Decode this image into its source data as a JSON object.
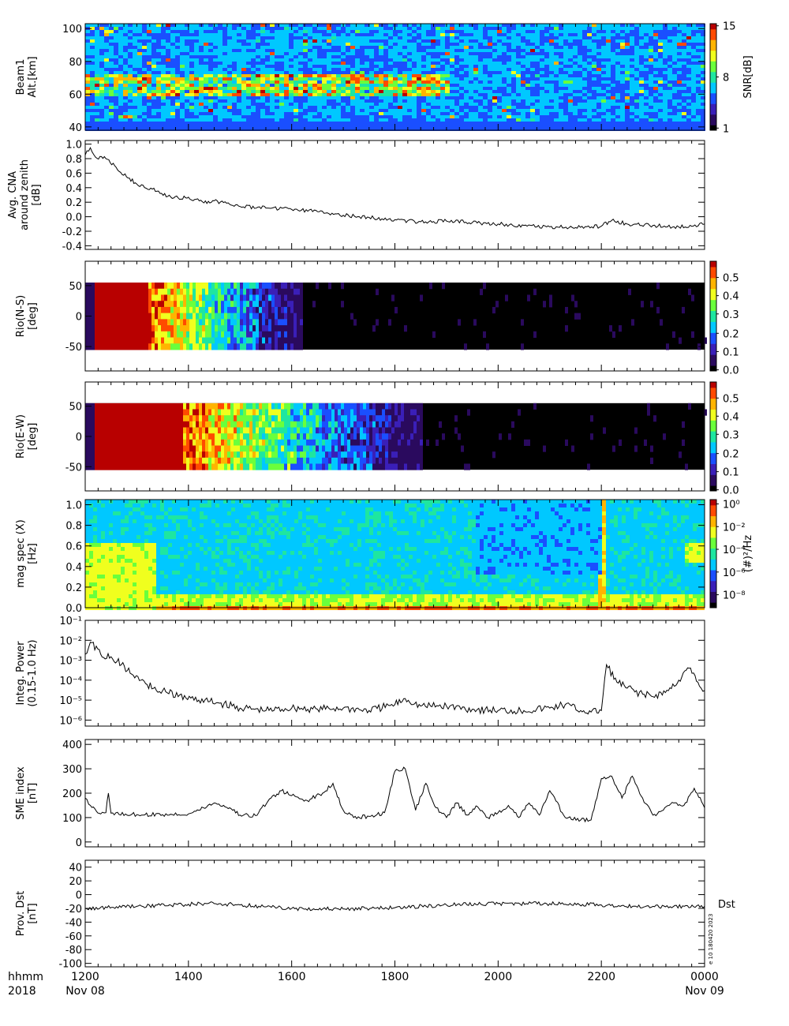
{
  "time_axis": {
    "tick_labels": [
      "1200",
      "1400",
      "1600",
      "1800",
      "2000",
      "2200",
      "0000"
    ],
    "row1_left": "hhmm",
    "row2_left": "2018",
    "date_start": "Nov 08",
    "date_end": "Nov 09"
  },
  "panels": {
    "beam": {
      "ylabel_lines": [
        "Beam1",
        "Alt.[km]"
      ],
      "yticks": [
        "40",
        "60",
        "80",
        "100"
      ],
      "colorbar_label": "SNR[dB]",
      "colorbar_ticks": [
        "1",
        "8",
        "15"
      ]
    },
    "cna": {
      "ylabel_lines": [
        "Avg. CNA",
        "around zenith",
        "[dB]"
      ],
      "yticks": [
        "-0.4",
        "-0.2",
        "0.0",
        "0.2",
        "0.4",
        "0.6",
        "0.8",
        "1.0"
      ]
    },
    "rio_ns": {
      "ylabel_lines": [
        "Rio(N-S)",
        "[deg]"
      ],
      "yticks": [
        "-50",
        "0",
        "50"
      ],
      "colorbar_ticks": [
        "0.0",
        "0.1",
        "0.2",
        "0.3",
        "0.4",
        "0.5"
      ]
    },
    "rio_ew": {
      "ylabel_lines": [
        "Rio(E-W)",
        "[deg]"
      ],
      "yticks": [
        "-50",
        "0",
        "50"
      ],
      "colorbar_ticks": [
        "0.0",
        "0.1",
        "0.2",
        "0.3",
        "0.4",
        "0.5"
      ]
    },
    "magspec": {
      "ylabel_lines": [
        "mag spec (X)",
        "[Hz]"
      ],
      "yticks": [
        "0.0",
        "0.2",
        "0.4",
        "0.6",
        "0.8",
        "1.0"
      ],
      "colorbar_label": "(#)²/Hz",
      "colorbar_ticks": [
        "10⁰",
        "10⁻²",
        "10⁻⁴",
        "10⁻⁶",
        "10⁻⁸"
      ]
    },
    "power": {
      "ylabel_lines": [
        "Integ. Power",
        "(0.15-1.0 Hz)"
      ],
      "yticks": [
        "10⁻⁶",
        "10⁻⁵",
        "10⁻⁴",
        "10⁻³",
        "10⁻²",
        "10⁻¹"
      ]
    },
    "sme": {
      "ylabel_lines": [
        "SME index",
        "[nT]"
      ],
      "yticks": [
        "0",
        "100",
        "200",
        "300",
        "400"
      ]
    },
    "dst": {
      "ylabel_lines": [
        "Prov. Dst",
        "[nT]"
      ],
      "yticks": [
        "-100",
        "-80",
        "-60",
        "-40",
        "-20",
        "0",
        "20",
        "40"
      ],
      "series_label": "Dst",
      "stamp": "e 10 180420 2023"
    }
  },
  "colors": {
    "line": "#000000",
    "colormap": [
      "#000000",
      "#2a0a5e",
      "#3a1fb8",
      "#1a4fff",
      "#00c8ff",
      "#1ee6a0",
      "#6aff3c",
      "#f0ff1e",
      "#ffb400",
      "#ff4a00",
      "#b80000"
    ]
  },
  "chart_data": [
    {
      "type": "heatmap",
      "name": "beam1",
      "ylabel": "Beam1 Alt.[km]",
      "x_range": [
        12,
        24
      ],
      "ylim": [
        40,
        100
      ],
      "colorbar": {
        "label": "SNR[dB]",
        "range": [
          1,
          15
        ]
      },
      "description_values": {
        "high_snr_band_km": [
          60,
          72
        ],
        "high_snr_hours": [
          12,
          19
        ]
      }
    },
    {
      "type": "line",
      "name": "cna",
      "ylabel": "Avg. CNA around zenith [dB]",
      "ylim": [
        -0.45,
        1.05
      ],
      "x": [
        12.0,
        12.1,
        12.2,
        12.4,
        12.6,
        12.8,
        13.0,
        13.3,
        13.6,
        13.8,
        14.0,
        14.3,
        14.5,
        14.8,
        15.0,
        15.5,
        16.0,
        16.5,
        17.0,
        17.5,
        18.0,
        18.5,
        19.0,
        19.5,
        20.0,
        20.5,
        21.0,
        21.5,
        22.0,
        22.2,
        22.5,
        23.0,
        23.5,
        24.0
      ],
      "y": [
        0.85,
        0.95,
        0.82,
        0.8,
        0.68,
        0.55,
        0.45,
        0.38,
        0.28,
        0.26,
        0.27,
        0.19,
        0.22,
        0.17,
        0.14,
        0.12,
        0.1,
        0.07,
        0.02,
        -0.01,
        -0.04,
        -0.07,
        -0.06,
        -0.08,
        -0.1,
        -0.12,
        -0.14,
        -0.15,
        -0.13,
        -0.05,
        -0.1,
        -0.12,
        -0.14,
        -0.1
      ]
    },
    {
      "type": "heatmap",
      "name": "rio_ns",
      "ylabel": "Rio(N-S) [deg]",
      "x_range": [
        12,
        24
      ],
      "ylim": [
        -90,
        90
      ],
      "data_extent_deg": [
        -55,
        55
      ],
      "colorbar": {
        "range": [
          0.0,
          0.58
        ]
      },
      "description_values": {
        "strong_absorption_hours": [
          12.0,
          14.2
        ]
      }
    },
    {
      "type": "heatmap",
      "name": "rio_ew",
      "ylabel": "Rio(E-W) [deg]",
      "x_range": [
        12,
        24
      ],
      "ylim": [
        -90,
        90
      ],
      "data_extent_deg": [
        -55,
        55
      ],
      "colorbar": {
        "range": [
          0.0,
          0.58
        ]
      },
      "description_values": {
        "strong_absorption_hours": [
          12.0,
          15.5
        ]
      }
    },
    {
      "type": "heatmap",
      "name": "magspec",
      "ylabel": "mag spec (X) [Hz]",
      "x_range": [
        12,
        24
      ],
      "ylim": [
        0.0,
        1.05
      ],
      "colorbar": {
        "label": "(#)²/Hz",
        "log_range": [
          -9,
          0.5
        ]
      }
    },
    {
      "type": "line",
      "name": "integ_power",
      "ylabel": "Integ. Power (0.15-1.0 Hz)",
      "log_scale": true,
      "ylim": [
        5e-07,
        0.1
      ],
      "x": [
        12.0,
        12.1,
        12.3,
        12.5,
        12.7,
        12.9,
        13.2,
        13.5,
        13.8,
        14.2,
        14.6,
        15.0,
        15.5,
        16.0,
        16.5,
        17.0,
        17.5,
        18.0,
        18.2,
        18.5,
        19.0,
        19.5,
        20.0,
        20.5,
        21.0,
        21.3,
        21.6,
        21.8,
        22.0,
        22.1,
        22.3,
        22.5,
        22.8,
        23.0,
        23.3,
        23.5,
        23.7,
        23.9,
        24.0
      ],
      "y": [
        0.002,
        0.008,
        0.002,
        0.0015,
        0.0006,
        0.0002,
        6e-05,
        3e-05,
        1.5e-05,
        1e-05,
        7e-06,
        4e-06,
        3e-06,
        4e-06,
        3.5e-06,
        4e-06,
        3e-06,
        6e-06,
        1.2e-05,
        5e-06,
        5e-06,
        3.5e-06,
        3e-06,
        3e-06,
        4e-06,
        6e-06,
        3e-06,
        2.5e-06,
        3e-06,
        0.0006,
        8e-05,
        4e-05,
        2e-05,
        1.5e-05,
        3e-05,
        0.0001,
        0.0004,
        5e-05,
        3e-05
      ]
    },
    {
      "type": "line",
      "name": "sme_index",
      "ylabel": "SME index [nT]",
      "ylim": [
        -20,
        420
      ],
      "x": [
        12.0,
        12.1,
        12.3,
        12.4,
        12.45,
        12.5,
        13.0,
        13.5,
        14.0,
        14.2,
        14.5,
        14.8,
        15.0,
        15.3,
        15.6,
        15.8,
        16.0,
        16.3,
        16.6,
        16.8,
        17.0,
        17.2,
        17.5,
        17.8,
        18.0,
        18.2,
        18.4,
        18.6,
        18.8,
        19.0,
        19.2,
        19.4,
        19.6,
        19.8,
        20.0,
        20.2,
        20.4,
        20.6,
        20.8,
        21.0,
        21.3,
        21.6,
        21.8,
        22.0,
        22.2,
        22.4,
        22.6,
        22.8,
        23.0,
        23.2,
        23.4,
        23.6,
        23.8,
        24.0
      ],
      "y": [
        180,
        150,
        115,
        120,
        200,
        118,
        112,
        112,
        115,
        130,
        160,
        140,
        110,
        108,
        180,
        210,
        190,
        170,
        200,
        240,
        130,
        100,
        105,
        120,
        290,
        300,
        130,
        240,
        140,
        100,
        160,
        110,
        145,
        100,
        120,
        150,
        100,
        160,
        110,
        210,
        100,
        90,
        90,
        260,
        270,
        180,
        270,
        180,
        110,
        130,
        160,
        150,
        220,
        140
      ]
    },
    {
      "type": "line",
      "name": "prov_dst",
      "ylabel": "Prov. Dst [nT]",
      "ylim": [
        -105,
        50
      ],
      "x": [
        12.0,
        13.0,
        14.0,
        14.5,
        15.0,
        16.0,
        17.0,
        18.0,
        19.0,
        20.0,
        21.0,
        22.0,
        23.0,
        24.0
      ],
      "y": [
        -20,
        -17,
        -14,
        -13,
        -15,
        -20,
        -21,
        -19,
        -15,
        -13,
        -13,
        -15,
        -17,
        -17
      ]
    }
  ]
}
